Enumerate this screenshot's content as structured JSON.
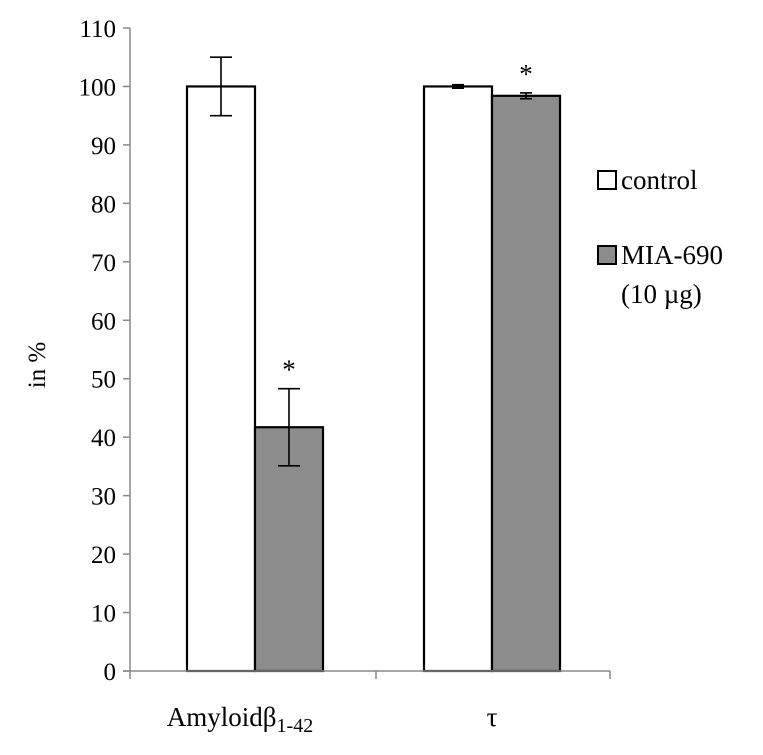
{
  "chart_data": {
    "type": "bar",
    "title": "",
    "xlabel": "",
    "ylabel": "in %",
    "ylim": [
      0,
      110
    ],
    "yticks": [
      0,
      10,
      20,
      30,
      40,
      50,
      60,
      70,
      80,
      90,
      100,
      110
    ],
    "grid": false,
    "legend_position": "right",
    "categories": [
      {
        "main": "Amyloidβ",
        "sub": "1-42"
      },
      {
        "main": "τ",
        "sub": ""
      }
    ],
    "series": [
      {
        "name": "control",
        "color": "#ffffff",
        "values": [
          100,
          100
        ],
        "errors": [
          5,
          0.3
        ],
        "significance": [
          "",
          ""
        ]
      },
      {
        "name": "MIA-690",
        "name_line2": "(10  µg)",
        "color": "#8c8c8c",
        "values": [
          41.7,
          98.4
        ],
        "errors": [
          6.6,
          0.5
        ],
        "significance": [
          "*",
          "*"
        ]
      }
    ]
  }
}
